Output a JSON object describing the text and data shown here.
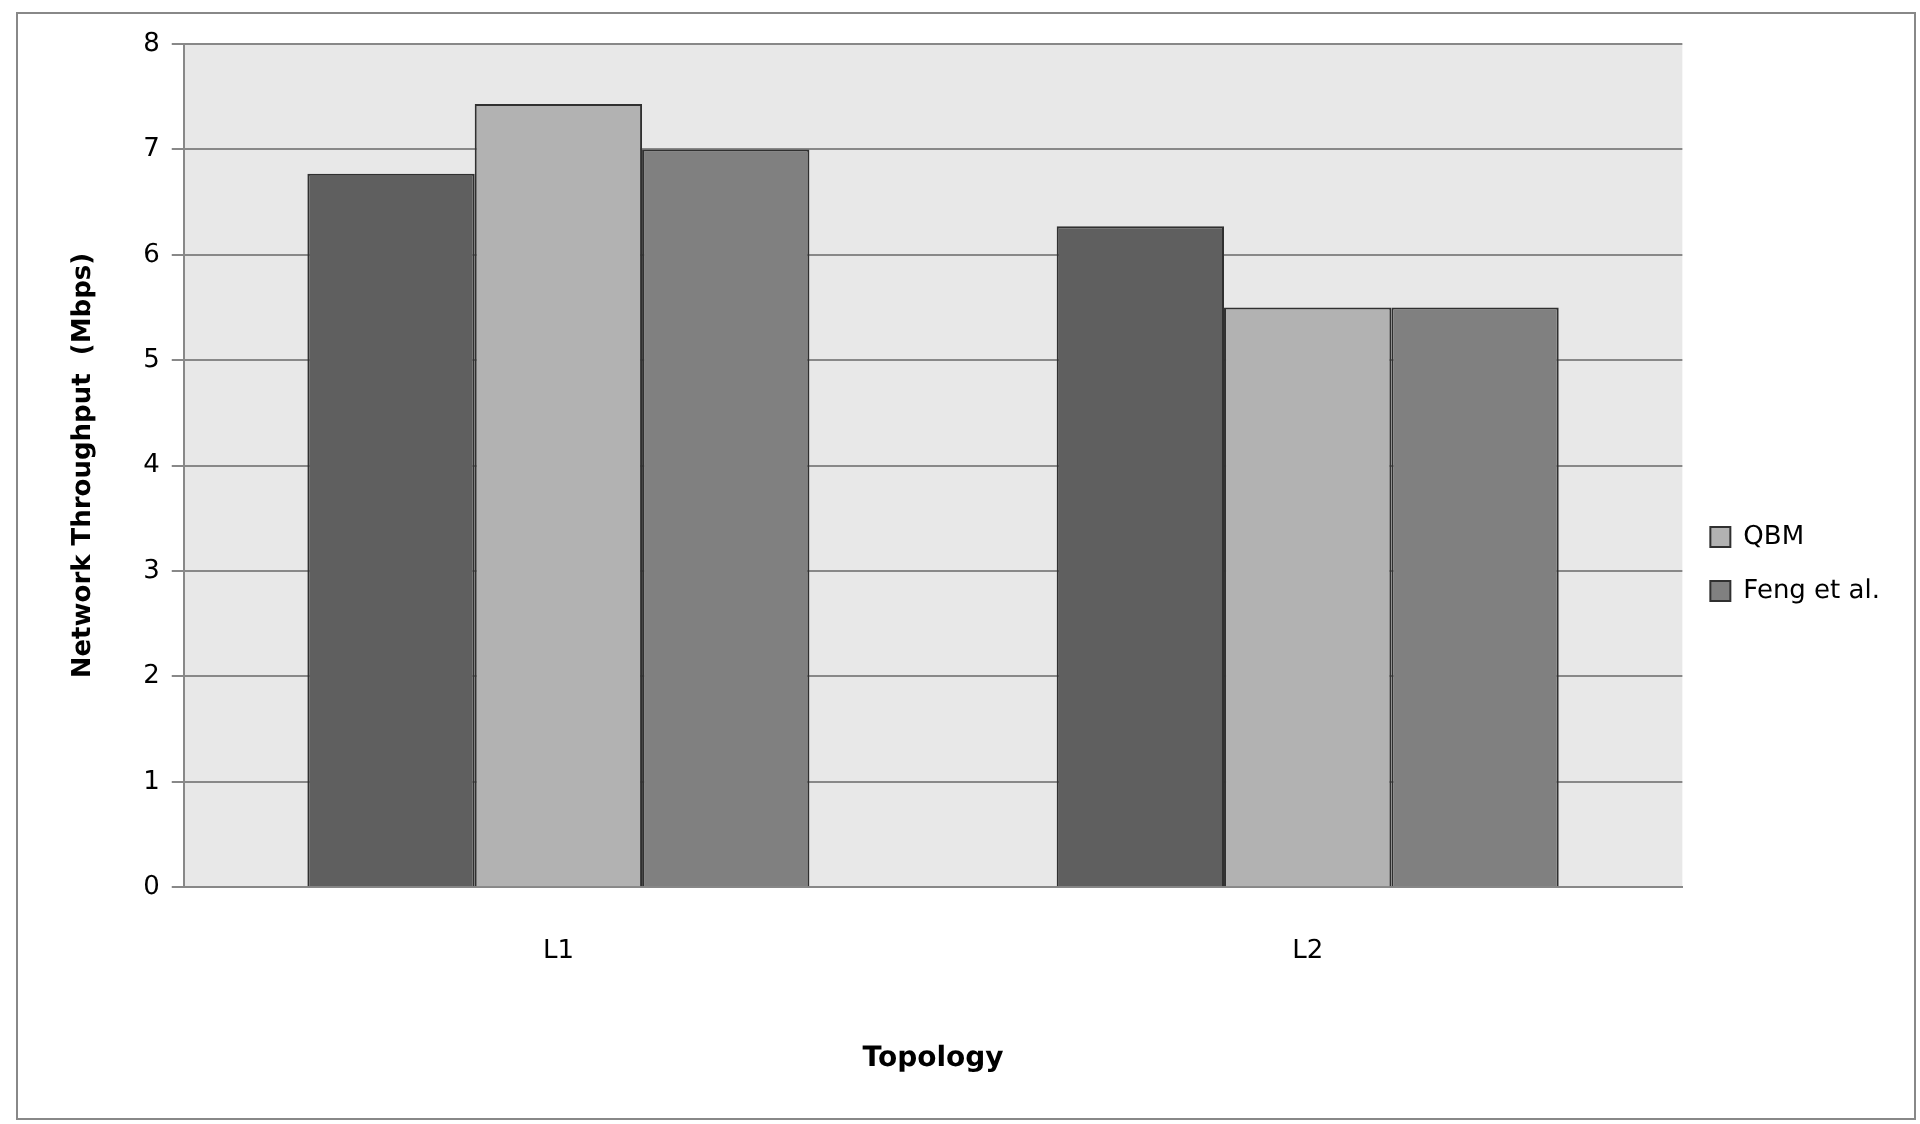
{
  "chart_data": {
    "type": "bar",
    "xlabel": "Topology",
    "ylabel": "Network Throughput  (Mbps)",
    "categories": [
      "L1",
      "L2"
    ],
    "series": [
      {
        "color": "#5f5f5f",
        "values": [
          6.77,
          6.27
        ]
      },
      {
        "name": "QBM",
        "color": "#b2b2b2",
        "values": [
          7.43,
          5.5
        ]
      },
      {
        "name": "Feng et al.",
        "color": "#808080",
        "values": [
          7.0,
          5.5
        ]
      }
    ],
    "ylim": [
      0,
      8
    ],
    "yticks": [
      0,
      1,
      2,
      3,
      4,
      5,
      6,
      7,
      8
    ],
    "grid": "y",
    "legend": "right"
  }
}
